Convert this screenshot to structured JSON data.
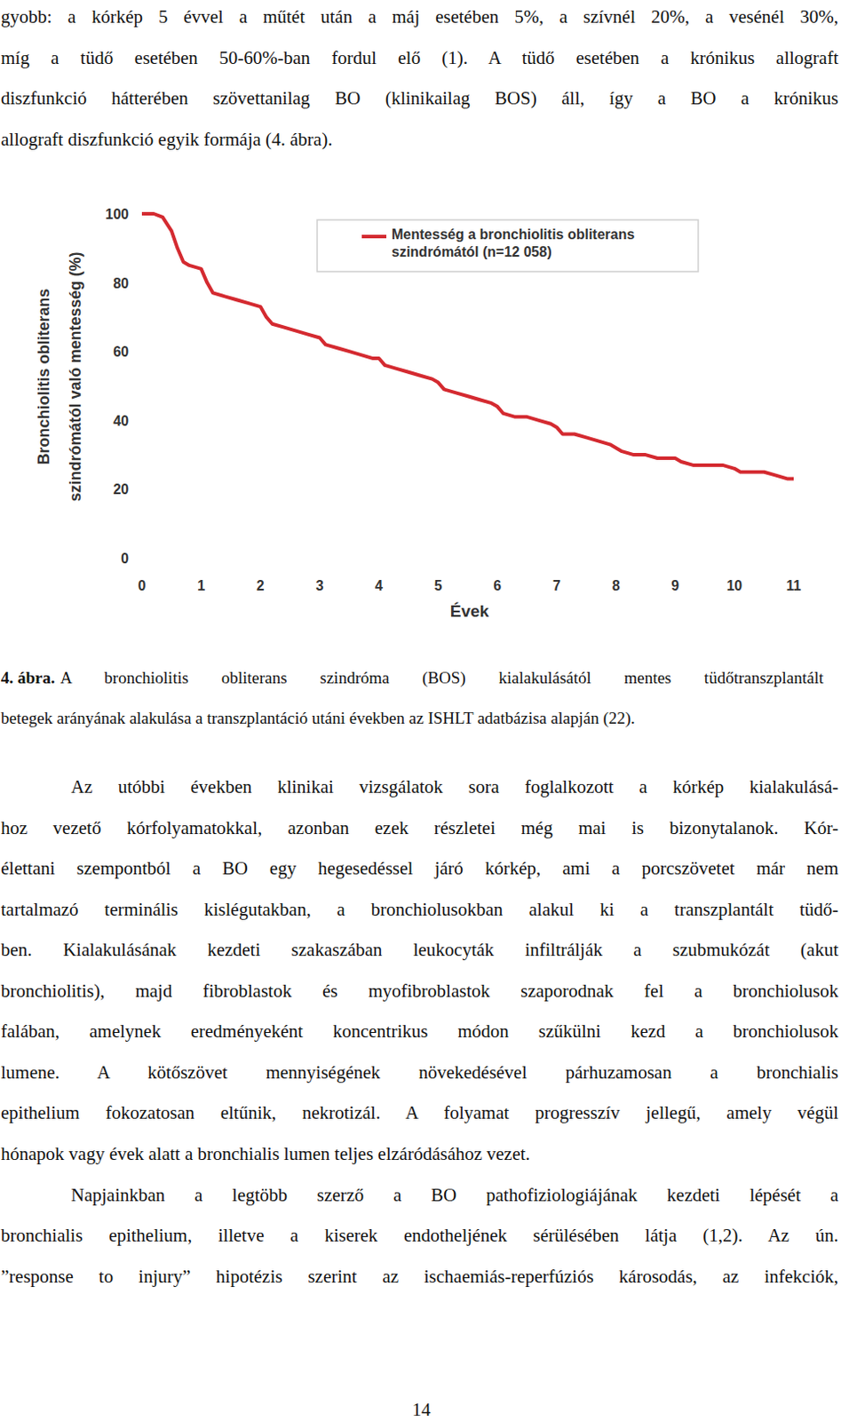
{
  "paragraphs": [
    [
      "gyobb: a kórkép 5 évvel a műtét után a máj esetében 5%, a szívnél 20%, a vesénél 30%,",
      "míg a tüdő esetében 50-60%-ban fordul elő (1). A tüdő esetében a krónikus allograft",
      "diszfunkció hátterében szövettanilag BO (klinikailag BOS) áll, így a BO a krónikus",
      "allograft diszfunkció egyik formája (4. ábra)."
    ],
    [
      "Az utóbbi években klinikai vizsgálatok sora foglalkozott a kórkép kialakulásá-",
      "hoz vezető kórfolyamatokkal, azonban ezek részletei még mai is bizonytalanok. Kór-",
      "élettani szempontból a BO egy hegesedéssel járó kórkép, ami a porcszövetet már nem",
      "tartalmazó terminális kislégutakban, a bronchiolusokban alakul ki a transzplantált tüdő-",
      "ben. Kialakulásának kezdeti szakaszában leukocyták infiltrálják a szubmukózát (akut",
      "bronchiolitis), majd fibroblastok és myofibroblastok szaporodnak fel a bronchiolusok",
      "falában, amelynek eredményeként koncentrikus módon szűkülni kezd a bronchiolusok",
      "lumene. A kötőszövet mennyiségének növekedésével párhuzamosan a bronchialis",
      "epithelium fokozatosan eltűnik, nekrotizál. A folyamat progresszív jellegű, amely végül",
      "hónapok vagy évek alatt a bronchialis lumen teljes elzáródásához vezet."
    ],
    [
      "Napjainkban a legtöbb szerző a BO pathofiziologiájának kezdeti lépését a",
      "bronchialis epithelium, illetve a kiserek endotheljének sérülésében látja (1,2). Az ún.",
      "”response to injury” hipotézis szerint az ischaemiás-reperfúziós károsodás, az infekciók,"
    ]
  ],
  "caption": {
    "label": "4. ábra.",
    "text": [
      "A bronchiolitis obliterans szindróma (BOS) kialakulásától mentes tüdőtranszplantált",
      "betegek arányának alakulása a transzplantáció utáni években az ISHLT adatbázisa alapján (22)."
    ]
  },
  "page_number": "14",
  "chart_data": {
    "type": "line",
    "x_label": "Évek",
    "y_label": [
      "Bronchiolitis obliterans",
      "szindrómától való mentesség (%)"
    ],
    "xlim": [
      0,
      11
    ],
    "ylim": [
      0,
      100
    ],
    "xticks": [
      0,
      1,
      2,
      3,
      4,
      5,
      6,
      7,
      8,
      9,
      10,
      11
    ],
    "yticks": [
      0,
      20,
      40,
      60,
      80,
      100
    ],
    "grid": false,
    "legend": "top",
    "series": [
      {
        "name": "Mentesség a bronchiolitis obliterans szindrómától (n=12 058)",
        "color": "#d42a30",
        "x": [
          0,
          0.2,
          0.35,
          0.5,
          0.6,
          0.7,
          0.8,
          1,
          1.1,
          1.2,
          1.4,
          1.6,
          1.8,
          2,
          2.1,
          2.2,
          2.4,
          2.6,
          2.8,
          3,
          3.1,
          3.3,
          3.5,
          3.7,
          3.9,
          4,
          4.1,
          4.3,
          4.5,
          4.7,
          4.9,
          5,
          5.1,
          5.3,
          5.5,
          5.7,
          5.9,
          6,
          6.1,
          6.3,
          6.5,
          6.7,
          6.9,
          7,
          7.1,
          7.3,
          7.5,
          7.7,
          7.9,
          8,
          8.1,
          8.3,
          8.5,
          8.7,
          9,
          9.1,
          9.3,
          9.5,
          9.8,
          10,
          10.1,
          10.3,
          10.5,
          10.7,
          10.9,
          11
        ],
        "values": [
          100,
          100,
          99,
          95,
          90,
          86,
          85,
          84,
          80,
          77,
          76,
          75,
          74,
          73,
          70,
          68,
          67,
          66,
          65,
          64,
          62,
          61,
          60,
          59,
          58,
          58,
          56,
          55,
          54,
          53,
          52,
          51,
          49,
          48,
          47,
          46,
          45,
          44,
          42,
          41,
          41,
          40,
          39,
          38,
          36,
          36,
          35,
          34,
          33,
          32,
          31,
          30,
          30,
          29,
          29,
          28,
          27,
          27,
          27,
          26,
          25,
          25,
          25,
          24,
          23,
          23
        ]
      }
    ]
  }
}
